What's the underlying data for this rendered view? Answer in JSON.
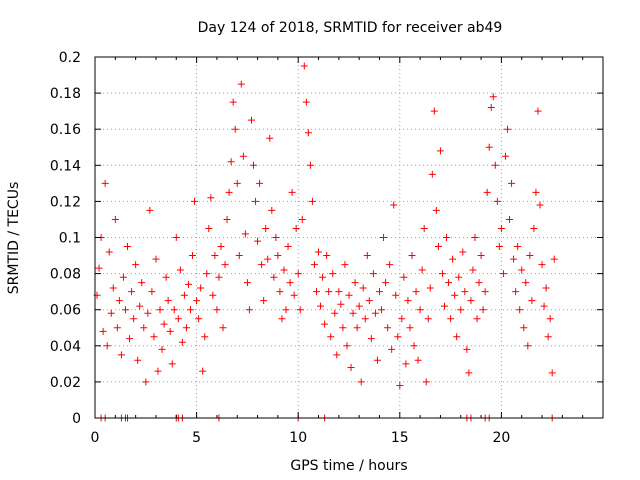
{
  "chart_data": {
    "type": "scatter",
    "title": "Day 124 of 2018, SRMTID for receiver ab49",
    "xlabel": "GPS time / hours",
    "ylabel": "SRMTID / TECUs",
    "xlim": [
      0,
      25
    ],
    "ylim": [
      0,
      0.2
    ],
    "xticks": [
      0,
      5,
      10,
      15,
      20
    ],
    "xtick_labels": [
      "0",
      "5",
      "10",
      "15",
      "20"
    ],
    "yticks": [
      0,
      0.02,
      0.04,
      0.06,
      0.08,
      0.1,
      0.12,
      0.14,
      0.16,
      0.18,
      0.2
    ],
    "ytick_labels": [
      "0",
      "0.02",
      "0.04",
      "0.06",
      "0.08",
      "0.1",
      "0.12",
      "0.14",
      "0.16",
      "0.18",
      "0.2"
    ],
    "grid": true,
    "marker": "+",
    "marker_color": "#ff0000",
    "x_range_of_data": [
      0,
      22.6
    ],
    "series": [
      {
        "name": "SRMTID",
        "points": [
          [
            0.1,
            0.068
          ],
          [
            0.2,
            0.083
          ],
          [
            0.3,
            0.1
          ],
          [
            0.4,
            0.048
          ],
          [
            0.5,
            0.13
          ],
          [
            0.6,
            0.04
          ],
          [
            0.7,
            0.092
          ],
          [
            0.8,
            0.058
          ],
          [
            0.9,
            0.072
          ],
          [
            1.0,
            0.11
          ],
          [
            1.1,
            0.05
          ],
          [
            1.2,
            0.065
          ],
          [
            1.3,
            0.035
          ],
          [
            1.4,
            0.078
          ],
          [
            1.5,
            0.06
          ],
          [
            1.6,
            0.095
          ],
          [
            1.7,
            0.044
          ],
          [
            1.8,
            0.07
          ],
          [
            1.9,
            0.055
          ],
          [
            2.0,
            0.085
          ],
          [
            2.1,
            0.032
          ],
          [
            2.2,
            0.062
          ],
          [
            2.3,
            0.075
          ],
          [
            2.4,
            0.05
          ],
          [
            2.5,
            0.02
          ],
          [
            2.6,
            0.058
          ],
          [
            2.7,
            0.115
          ],
          [
            2.8,
            0.07
          ],
          [
            2.9,
            0.045
          ],
          [
            3.0,
            0.088
          ],
          [
            3.1,
            0.026
          ],
          [
            3.2,
            0.06
          ],
          [
            3.3,
            0.038
          ],
          [
            3.4,
            0.052
          ],
          [
            3.5,
            0.078
          ],
          [
            3.6,
            0.065
          ],
          [
            3.7,
            0.048
          ],
          [
            3.8,
            0.03
          ],
          [
            3.9,
            0.06
          ],
          [
            4.0,
            0.1
          ],
          [
            4.1,
            0.055
          ],
          [
            4.2,
            0.082
          ],
          [
            4.3,
            0.042
          ],
          [
            4.4,
            0.068
          ],
          [
            4.5,
            0.05
          ],
          [
            4.6,
            0.074
          ],
          [
            4.7,
            0.06
          ],
          [
            4.8,
            0.09
          ],
          [
            4.9,
            0.12
          ],
          [
            5.0,
            0.065
          ],
          [
            5.1,
            0.055
          ],
          [
            5.2,
            0.072
          ],
          [
            5.3,
            0.026
          ],
          [
            5.4,
            0.045
          ],
          [
            5.5,
            0.08
          ],
          [
            5.6,
            0.105
          ],
          [
            5.7,
            0.122
          ],
          [
            5.8,
            0.068
          ],
          [
            5.9,
            0.09
          ],
          [
            6.0,
            0.06
          ],
          [
            6.1,
            0.078
          ],
          [
            6.2,
            0.095
          ],
          [
            6.3,
            0.05
          ],
          [
            6.4,
            0.085
          ],
          [
            6.5,
            0.11
          ],
          [
            6.6,
            0.125
          ],
          [
            6.7,
            0.142
          ],
          [
            6.8,
            0.175
          ],
          [
            6.9,
            0.16
          ],
          [
            7.0,
            0.13
          ],
          [
            7.1,
            0.09
          ],
          [
            7.2,
            0.185
          ],
          [
            7.3,
            0.145
          ],
          [
            7.4,
            0.102
          ],
          [
            7.5,
            0.075
          ],
          [
            7.6,
            0.06
          ],
          [
            7.7,
            0.165
          ],
          [
            7.8,
            0.14
          ],
          [
            7.9,
            0.12
          ],
          [
            8.0,
            0.098
          ],
          [
            8.1,
            0.13
          ],
          [
            8.2,
            0.085
          ],
          [
            8.3,
            0.065
          ],
          [
            8.4,
            0.105
          ],
          [
            8.5,
            0.088
          ],
          [
            8.6,
            0.155
          ],
          [
            8.7,
            0.115
          ],
          [
            8.8,
            0.078
          ],
          [
            8.9,
            0.1
          ],
          [
            9.0,
            0.09
          ],
          [
            9.1,
            0.07
          ],
          [
            9.2,
            0.055
          ],
          [
            9.3,
            0.082
          ],
          [
            9.4,
            0.06
          ],
          [
            9.5,
            0.095
          ],
          [
            9.6,
            0.075
          ],
          [
            9.7,
            0.125
          ],
          [
            9.8,
            0.068
          ],
          [
            9.9,
            0.105
          ],
          [
            10.0,
            0.08
          ],
          [
            10.1,
            0.06
          ],
          [
            10.2,
            0.11
          ],
          [
            10.3,
            0.195
          ],
          [
            10.4,
            0.175
          ],
          [
            10.5,
            0.158
          ],
          [
            10.6,
            0.14
          ],
          [
            10.7,
            0.12
          ],
          [
            10.8,
            0.085
          ],
          [
            10.9,
            0.07
          ],
          [
            11.0,
            0.092
          ],
          [
            11.1,
            0.062
          ],
          [
            11.2,
            0.078
          ],
          [
            11.3,
            0.052
          ],
          [
            11.4,
            0.09
          ],
          [
            11.5,
            0.07
          ],
          [
            11.6,
            0.045
          ],
          [
            11.7,
            0.08
          ],
          [
            11.8,
            0.058
          ],
          [
            11.9,
            0.035
          ],
          [
            12.0,
            0.07
          ],
          [
            12.1,
            0.063
          ],
          [
            12.2,
            0.05
          ],
          [
            12.3,
            0.085
          ],
          [
            12.4,
            0.04
          ],
          [
            12.5,
            0.068
          ],
          [
            12.6,
            0.028
          ],
          [
            12.7,
            0.058
          ],
          [
            12.8,
            0.075
          ],
          [
            12.9,
            0.05
          ],
          [
            13.0,
            0.062
          ],
          [
            13.1,
            0.02
          ],
          [
            13.2,
            0.072
          ],
          [
            13.3,
            0.055
          ],
          [
            13.4,
            0.09
          ],
          [
            13.5,
            0.065
          ],
          [
            13.6,
            0.044
          ],
          [
            13.7,
            0.08
          ],
          [
            13.8,
            0.058
          ],
          [
            13.9,
            0.032
          ],
          [
            14.0,
            0.07
          ],
          [
            14.1,
            0.06
          ],
          [
            14.2,
            0.1
          ],
          [
            14.3,
            0.075
          ],
          [
            14.4,
            0.05
          ],
          [
            14.5,
            0.085
          ],
          [
            14.6,
            0.038
          ],
          [
            14.7,
            0.118
          ],
          [
            14.8,
            0.068
          ],
          [
            14.9,
            0.045
          ],
          [
            15.0,
            0.018
          ],
          [
            15.1,
            0.055
          ],
          [
            15.2,
            0.078
          ],
          [
            15.3,
            0.03
          ],
          [
            15.4,
            0.065
          ],
          [
            15.5,
            0.05
          ],
          [
            15.6,
            0.09
          ],
          [
            15.7,
            0.04
          ],
          [
            15.8,
            0.07
          ],
          [
            15.9,
            0.032
          ],
          [
            16.0,
            0.06
          ],
          [
            16.1,
            0.082
          ],
          [
            16.2,
            0.105
          ],
          [
            16.3,
            0.02
          ],
          [
            16.4,
            0.055
          ],
          [
            16.5,
            0.072
          ],
          [
            16.6,
            0.135
          ],
          [
            16.7,
            0.17
          ],
          [
            16.8,
            0.115
          ],
          [
            16.9,
            0.095
          ],
          [
            17.0,
            0.148
          ],
          [
            17.1,
            0.08
          ],
          [
            17.2,
            0.062
          ],
          [
            17.3,
            0.1
          ],
          [
            17.4,
            0.075
          ],
          [
            17.5,
            0.055
          ],
          [
            17.6,
            0.088
          ],
          [
            17.7,
            0.068
          ],
          [
            17.8,
            0.045
          ],
          [
            17.9,
            0.078
          ],
          [
            18.0,
            0.06
          ],
          [
            18.1,
            0.092
          ],
          [
            18.2,
            0.07
          ],
          [
            18.3,
            0.038
          ],
          [
            18.4,
            0.025
          ],
          [
            18.5,
            0.065
          ],
          [
            18.6,
            0.082
          ],
          [
            18.7,
            0.1
          ],
          [
            18.8,
            0.055
          ],
          [
            18.9,
            0.075
          ],
          [
            19.0,
            0.09
          ],
          [
            19.1,
            0.06
          ],
          [
            19.2,
            0.07
          ],
          [
            19.3,
            0.125
          ],
          [
            19.4,
            0.15
          ],
          [
            19.5,
            0.172
          ],
          [
            19.6,
            0.178
          ],
          [
            19.7,
            0.14
          ],
          [
            19.8,
            0.12
          ],
          [
            19.9,
            0.095
          ],
          [
            20.0,
            0.105
          ],
          [
            20.1,
            0.08
          ],
          [
            20.2,
            0.145
          ],
          [
            20.3,
            0.16
          ],
          [
            20.4,
            0.11
          ],
          [
            20.5,
            0.13
          ],
          [
            20.6,
            0.088
          ],
          [
            20.7,
            0.07
          ],
          [
            20.8,
            0.095
          ],
          [
            20.9,
            0.06
          ],
          [
            21.0,
            0.082
          ],
          [
            21.1,
            0.05
          ],
          [
            21.2,
            0.075
          ],
          [
            21.3,
            0.04
          ],
          [
            21.4,
            0.09
          ],
          [
            21.5,
            0.065
          ],
          [
            21.6,
            0.105
          ],
          [
            21.7,
            0.125
          ],
          [
            21.8,
            0.17
          ],
          [
            21.9,
            0.118
          ],
          [
            22.0,
            0.085
          ],
          [
            22.1,
            0.062
          ],
          [
            22.2,
            0.072
          ],
          [
            22.3,
            0.045
          ],
          [
            22.4,
            0.055
          ],
          [
            22.5,
            0.025
          ],
          [
            22.6,
            0.088
          ]
        ]
      }
    ],
    "zero_points_x": [
      0.3,
      0.5,
      1.3,
      1.5,
      1.6,
      4.0,
      4.1,
      4.3,
      6.1,
      10.0,
      11.3,
      18.3,
      18.5,
      19.2,
      19.4,
      22.5
    ]
  }
}
